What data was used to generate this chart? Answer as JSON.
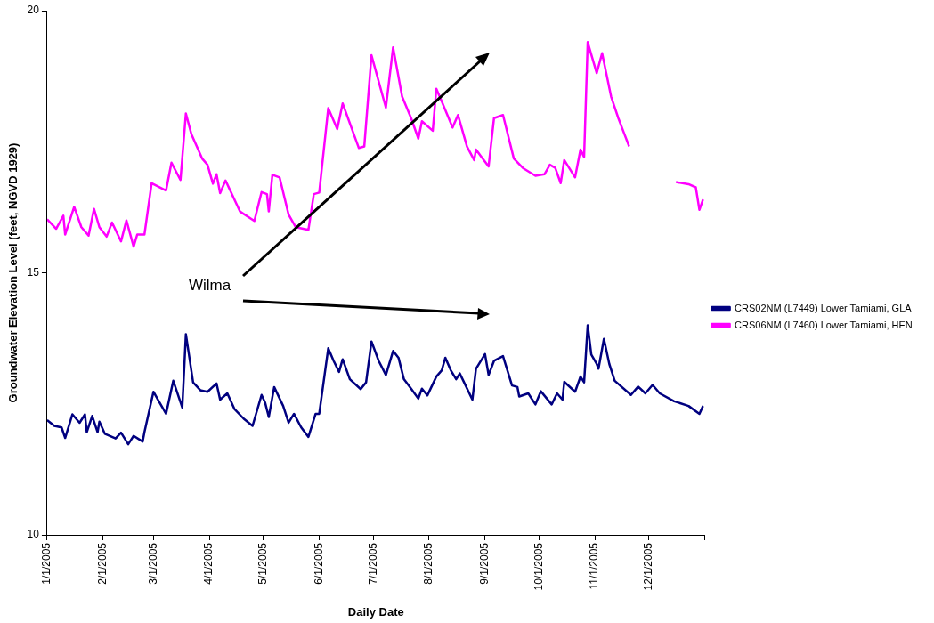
{
  "chart_data": {
    "type": "line",
    "xlabel": "Daily Date",
    "ylabel": "Groundwater Elevation Level (feet, NGVD 1929)",
    "annotations": [
      "Wilma"
    ],
    "xlim": [
      "2005-01-01",
      "2006-01-01"
    ],
    "xticks": [
      {
        "value": "2005-01-01",
        "label": "1/1/2005"
      },
      {
        "value": "2005-02-01",
        "label": "2/1/2005"
      },
      {
        "value": "2005-03-01",
        "label": "3/1/2005"
      },
      {
        "value": "2005-04-01",
        "label": "4/1/2005"
      },
      {
        "value": "2005-05-01",
        "label": "5/1/2005"
      },
      {
        "value": "2005-06-01",
        "label": "6/1/2005"
      },
      {
        "value": "2005-07-01",
        "label": "7/1/2005"
      },
      {
        "value": "2005-08-01",
        "label": "8/1/2005"
      },
      {
        "value": "2005-09-01",
        "label": "9/1/2005"
      },
      {
        "value": "2005-10-01",
        "label": "10/1/2005"
      },
      {
        "value": "2005-11-01",
        "label": "11/1/2005"
      },
      {
        "value": "2005-12-01",
        "label": "12/1/2005"
      },
      {
        "value": "2006-01-01",
        "label": null
      }
    ],
    "ylim": [
      10,
      20
    ],
    "yticks": [
      10,
      15,
      20
    ],
    "grid": false,
    "legend": "right",
    "marker": "none",
    "line_style": "solid",
    "series": [
      {
        "name": "CRS02NM (L7449) Lower Tamiami, GLA",
        "color": "#000080",
        "x": [
          "2005-01-01",
          "2005-01-05",
          "2005-01-09",
          "2005-01-11",
          "2005-01-15",
          "2005-01-19",
          "2005-01-22",
          "2005-01-23",
          "2005-01-26",
          "2005-01-29",
          "2005-01-30",
          "2005-02-02",
          "2005-02-08",
          "2005-02-11",
          "2005-02-15",
          "2005-02-18",
          "2005-02-23",
          "2005-02-24",
          "2005-03-01",
          "2005-03-04",
          "2005-03-08",
          "2005-03-12",
          "2005-03-17",
          "2005-03-19",
          "2005-03-23",
          "2005-03-27",
          "2005-03-31",
          "2005-04-05",
          "2005-04-07",
          "2005-04-11",
          "2005-04-15",
          "2005-04-20",
          "2005-04-25",
          "2005-04-30",
          "2005-05-02",
          "2005-05-04",
          "2005-05-07",
          "2005-05-12",
          "2005-05-15",
          "2005-05-18",
          "2005-05-22",
          "2005-05-26",
          "2005-05-30",
          "2005-06-01",
          "2005-06-06",
          "2005-06-09",
          "2005-06-12",
          "2005-06-14",
          "2005-06-18",
          "2005-06-24",
          "2005-06-27",
          "2005-06-30",
          "2005-07-04",
          "2005-07-08",
          "2005-07-12",
          "2005-07-15",
          "2005-07-18",
          "2005-07-22",
          "2005-07-26",
          "2005-07-28",
          "2005-07-31",
          "2005-08-05",
          "2005-08-08",
          "2005-08-10",
          "2005-08-13",
          "2005-08-16",
          "2005-08-18",
          "2005-08-25",
          "2005-08-27",
          "2005-09-01",
          "2005-09-03",
          "2005-09-06",
          "2005-09-11",
          "2005-09-16",
          "2005-09-19",
          "2005-09-20",
          "2005-09-25",
          "2005-09-29",
          "2005-10-02",
          "2005-10-08",
          "2005-10-11",
          "2005-10-14",
          "2005-10-15",
          "2005-10-21",
          "2005-10-24",
          "2005-10-26",
          "2005-10-28",
          "2005-10-30",
          "2005-11-02",
          "2005-11-03",
          "2005-11-06",
          "2005-11-09",
          "2005-11-12",
          "2005-11-21",
          "2005-11-25",
          "2005-11-29",
          "2005-12-03",
          "2005-12-07",
          "2005-12-15",
          "2005-12-23",
          "2005-12-29",
          "2005-12-31"
        ],
        "values": [
          12.19,
          12.08,
          12.05,
          11.85,
          12.3,
          12.14,
          12.3,
          11.96,
          12.27,
          11.96,
          12.16,
          11.93,
          11.84,
          11.95,
          11.73,
          11.89,
          11.78,
          11.96,
          12.73,
          12.55,
          12.31,
          12.94,
          12.43,
          13.83,
          12.91,
          12.76,
          12.73,
          12.89,
          12.58,
          12.7,
          12.4,
          12.22,
          12.08,
          12.67,
          12.52,
          12.25,
          12.82,
          12.46,
          12.14,
          12.31,
          12.05,
          11.87,
          12.31,
          12.31,
          13.56,
          13.32,
          13.11,
          13.35,
          12.97,
          12.78,
          12.91,
          13.69,
          13.32,
          13.05,
          13.51,
          13.38,
          12.97,
          12.79,
          12.6,
          12.79,
          12.66,
          13.02,
          13.14,
          13.38,
          13.14,
          12.97,
          13.08,
          12.58,
          13.17,
          13.45,
          13.05,
          13.32,
          13.41,
          12.85,
          12.82,
          12.64,
          12.7,
          12.49,
          12.74,
          12.49,
          12.7,
          12.58,
          12.92,
          12.73,
          13.02,
          12.91,
          14.0,
          13.44,
          13.26,
          13.17,
          13.74,
          13.26,
          12.94,
          12.67,
          12.83,
          12.7,
          12.86,
          12.7,
          12.55,
          12.46,
          12.31,
          12.46
        ]
      },
      {
        "name": "CRS06NM (L7460) Lower Tamiami, HEN",
        "color": "#ff00ff",
        "x": [
          "2005-01-01",
          "2005-01-06",
          "2005-01-10",
          "2005-01-11",
          "2005-01-16",
          "2005-01-20",
          "2005-01-24",
          "2005-01-27",
          "2005-01-30",
          "2005-02-03",
          "2005-02-06",
          "2005-02-11",
          "2005-02-14",
          "2005-02-18",
          "2005-02-20",
          "2005-02-24",
          "2005-02-28",
          "2005-03-08",
          "2005-03-11",
          "2005-03-16",
          "2005-03-19",
          "2005-03-22",
          "2005-03-28",
          "2005-03-31",
          "2005-04-03",
          "2005-04-05",
          "2005-04-07",
          "2005-04-10",
          "2005-04-18",
          "2005-04-26",
          "2005-04-30",
          "2005-05-03",
          "2005-05-04",
          "2005-05-06",
          "2005-05-10",
          "2005-05-15",
          "2005-05-19",
          "2005-05-26",
          "2005-05-29",
          "2005-06-01",
          "2005-06-06",
          "2005-06-11",
          "2005-06-14",
          "2005-06-23",
          "2005-06-26",
          "2005-06-30",
          "2005-07-08",
          "2005-07-12",
          "2005-07-17",
          "2005-07-22",
          "2005-07-26",
          "2005-07-28",
          "2005-08-03",
          "2005-08-05",
          "2005-08-08",
          "2005-08-14",
          "2005-08-17",
          "2005-08-22",
          "2005-08-26",
          "2005-08-27",
          "2005-08-30",
          "2005-09-03",
          "2005-09-06",
          "2005-09-11",
          "2005-09-17",
          "2005-09-22",
          "2005-09-29",
          "2005-10-04",
          "2005-10-07",
          "2005-10-10",
          "2005-10-13",
          "2005-10-15",
          "2005-10-21",
          "2005-10-24",
          "2005-10-26",
          "2005-10-28",
          "2005-11-02",
          "2005-11-05",
          "2005-11-10",
          "2005-11-14",
          "2005-11-17",
          "2005-11-20",
          "2005-12-02",
          "2005-12-16",
          "2005-12-23",
          "2005-12-27",
          "2005-12-29",
          "2005-12-31"
        ],
        "values": [
          16.02,
          15.84,
          16.09,
          15.73,
          16.26,
          15.87,
          15.71,
          16.22,
          15.87,
          15.69,
          15.96,
          15.6,
          16.0,
          15.5,
          15.73,
          15.73,
          16.71,
          16.57,
          17.1,
          16.77,
          18.04,
          17.65,
          17.18,
          17.06,
          16.7,
          16.88,
          16.52,
          16.76,
          16.17,
          15.99,
          16.54,
          16.5,
          16.17,
          16.87,
          16.82,
          16.11,
          15.87,
          15.82,
          16.5,
          16.53,
          18.14,
          17.74,
          18.23,
          17.38,
          17.41,
          19.15,
          18.15,
          19.3,
          18.36,
          17.95,
          17.56,
          17.89,
          17.71,
          18.51,
          18.27,
          17.77,
          18.01,
          17.41,
          17.15,
          17.35,
          17.21,
          17.03,
          17.95,
          18.01,
          17.18,
          17.0,
          16.85,
          16.88,
          17.06,
          17.0,
          16.71,
          17.15,
          16.82,
          17.35,
          17.21,
          19.4,
          18.81,
          19.19,
          18.36,
          17.95,
          17.68,
          17.41,
          null,
          16.73,
          16.69,
          16.63,
          16.2,
          16.4
        ]
      }
    ]
  }
}
